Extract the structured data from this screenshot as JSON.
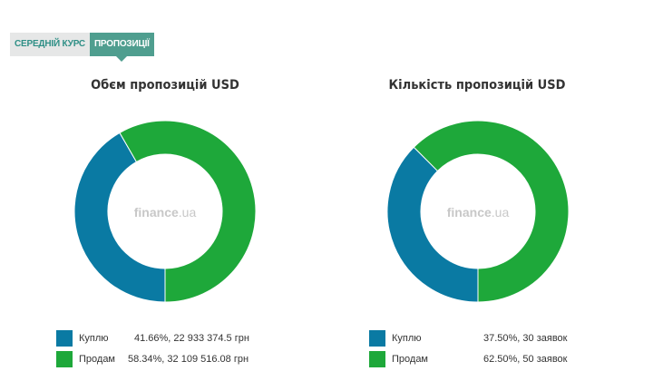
{
  "tabs": {
    "average_label": "СЕРЕДНІЙ КУРС",
    "offers_label": "ПРОПОЗИЦІЇ"
  },
  "watermark": {
    "brand": "finance",
    "suffix": ".ua"
  },
  "colors": {
    "buy": "#0a7aa3",
    "sell": "#1ea83a",
    "tab_active": "#4f9e8f"
  },
  "chart_data": [
    {
      "type": "pie",
      "title": "Обєм пропозицій USD",
      "labels": [
        "Куплю",
        "Продам"
      ],
      "values": [
        41.66,
        58.34
      ],
      "legend_values": [
        "41.66%, 22 933 374.5 грн",
        "58.34%, 32 109 516.08 грн"
      ],
      "legend": "bottom"
    },
    {
      "type": "pie",
      "title": "Кількість пропозицій USD",
      "labels": [
        "Куплю",
        "Продам"
      ],
      "values": [
        37.5,
        62.5
      ],
      "legend_values": [
        "37.50%, 30 заявок",
        "62.50%, 50 заявок"
      ],
      "legend": "bottom"
    }
  ]
}
